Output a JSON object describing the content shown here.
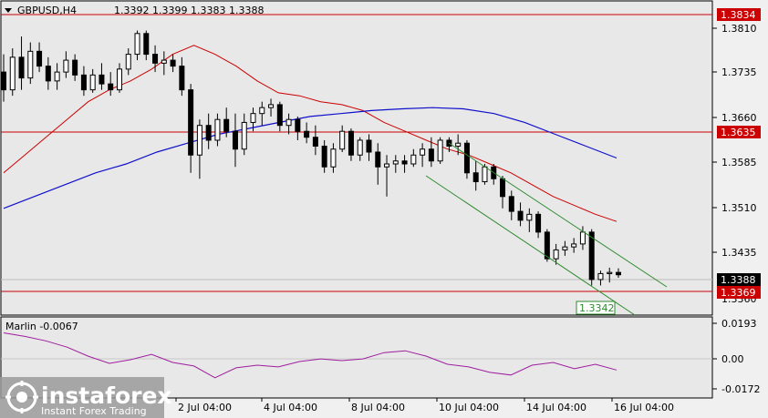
{
  "header": {
    "symbol": "GBPUSD,H4",
    "ohlc": "1.3392 1.3399 1.3383 1.3388"
  },
  "price_axis": {
    "ticks": [
      "1.3810",
      "1.3735",
      "1.3660",
      "1.3585",
      "1.3510",
      "1.3435",
      "1.3360"
    ]
  },
  "level_tags": {
    "top": "1.3834",
    "middle": "1.3635",
    "current": "1.3388",
    "bottom": "1.3369"
  },
  "channel_label": "1.3342",
  "indicator": {
    "name_value": "Marlin -0.0067",
    "ticks": [
      "0.0193",
      "0.00",
      "-0.0172"
    ]
  },
  "time_axis": {
    "labels": [
      "2 Jul 04:00",
      "4 Jul 04:00",
      "8 Jul 04:00",
      "10 Jul 04:00",
      "14 Jul 04:00",
      "16 Jul 04:00"
    ]
  },
  "watermark": {
    "brand": "instaforex",
    "tagline": "Instant Forex Trading"
  },
  "colors": {
    "chart_bg": "#e8e8e8",
    "candle": "#000000",
    "level_line": "#cc0000",
    "ma_fast": "#cc0000",
    "ma_slow": "#1010cc",
    "channel": "#2e8b2e",
    "oscillator": "#9e1e9e",
    "tag_red": "#cc0000",
    "tag_black": "#000000"
  },
  "chart_data": {
    "type": "candlestick",
    "y_range": [
      1.332,
      1.385
    ],
    "levels": [
      1.3834,
      1.3635,
      1.3369
    ],
    "ohlc": [
      [
        1.373,
        1.376,
        1.368,
        1.37
      ],
      [
        1.37,
        1.377,
        1.369,
        1.3755
      ],
      [
        1.3755,
        1.379,
        1.37,
        1.372
      ],
      [
        1.372,
        1.378,
        1.371,
        1.3765
      ],
      [
        1.3765,
        1.378,
        1.373,
        1.374
      ],
      [
        1.374,
        1.3755,
        1.37,
        1.3715
      ],
      [
        1.3715,
        1.3745,
        1.37,
        1.373
      ],
      [
        1.373,
        1.3765,
        1.372,
        1.375
      ],
      [
        1.375,
        1.376,
        1.3715,
        1.3725
      ],
      [
        1.3725,
        1.374,
        1.369,
        1.37
      ],
      [
        1.37,
        1.3735,
        1.3695,
        1.3725
      ],
      [
        1.3725,
        1.3745,
        1.37,
        1.371
      ],
      [
        1.371,
        1.373,
        1.369,
        1.37
      ],
      [
        1.37,
        1.3745,
        1.3695,
        1.3735
      ],
      [
        1.3735,
        1.377,
        1.3725,
        1.376
      ],
      [
        1.376,
        1.38,
        1.375,
        1.3795
      ],
      [
        1.3795,
        1.38,
        1.375,
        1.376
      ],
      [
        1.376,
        1.3775,
        1.373,
        1.3745
      ],
      [
        1.3745,
        1.3765,
        1.3725,
        1.375
      ],
      [
        1.375,
        1.376,
        1.373,
        1.374
      ],
      [
        1.374,
        1.3755,
        1.369,
        1.37
      ],
      [
        1.37,
        1.371,
        1.356,
        1.359
      ],
      [
        1.359,
        1.365,
        1.355,
        1.364
      ],
      [
        1.364,
        1.366,
        1.36,
        1.3615
      ],
      [
        1.3615,
        1.366,
        1.3605,
        1.365
      ],
      [
        1.365,
        1.367,
        1.362,
        1.363
      ],
      [
        1.363,
        1.366,
        1.357,
        1.36
      ],
      [
        1.36,
        1.366,
        1.359,
        1.3645
      ],
      [
        1.3645,
        1.367,
        1.363,
        1.366
      ],
      [
        1.366,
        1.368,
        1.364,
        1.367
      ],
      [
        1.367,
        1.3685,
        1.3655,
        1.3675
      ],
      [
        1.3675,
        1.368,
        1.363,
        1.364
      ],
      [
        1.364,
        1.366,
        1.3625,
        1.365
      ],
      [
        1.365,
        1.3655,
        1.3615,
        1.363
      ],
      [
        1.363,
        1.3645,
        1.361,
        1.362
      ],
      [
        1.362,
        1.364,
        1.359,
        1.3605
      ],
      [
        1.3605,
        1.3615,
        1.356,
        1.357
      ],
      [
        1.357,
        1.361,
        1.356,
        1.36
      ],
      [
        1.36,
        1.364,
        1.3595,
        1.363
      ],
      [
        1.363,
        1.3635,
        1.358,
        1.359
      ],
      [
        1.359,
        1.362,
        1.358,
        1.3615
      ],
      [
        1.3615,
        1.3625,
        1.358,
        1.3595
      ],
      [
        1.3595,
        1.361,
        1.354,
        1.357
      ],
      [
        1.357,
        1.359,
        1.352,
        1.3575
      ],
      [
        1.3575,
        1.359,
        1.356,
        1.358
      ],
      [
        1.358,
        1.359,
        1.356,
        1.3575
      ],
      [
        1.3575,
        1.36,
        1.357,
        1.359
      ],
      [
        1.359,
        1.361,
        1.357,
        1.36
      ],
      [
        1.36,
        1.362,
        1.357,
        1.358
      ],
      [
        1.358,
        1.362,
        1.3575,
        1.3615
      ],
      [
        1.3615,
        1.362,
        1.3595,
        1.3605
      ],
      [
        1.3605,
        1.3625,
        1.359,
        1.361
      ],
      [
        1.361,
        1.3615,
        1.355,
        1.356
      ],
      [
        1.356,
        1.358,
        1.353,
        1.3545
      ],
      [
        1.3545,
        1.3575,
        1.354,
        1.357
      ],
      [
        1.357,
        1.3575,
        1.354,
        1.355
      ],
      [
        1.355,
        1.3555,
        1.35,
        1.352
      ],
      [
        1.352,
        1.353,
        1.348,
        1.3495
      ],
      [
        1.3495,
        1.351,
        1.347,
        1.348
      ],
      [
        1.348,
        1.35,
        1.346,
        1.349
      ],
      [
        1.349,
        1.3495,
        1.345,
        1.346
      ],
      [
        1.346,
        1.3465,
        1.341,
        1.3415
      ],
      [
        1.3415,
        1.344,
        1.3405,
        1.343
      ],
      [
        1.343,
        1.3445,
        1.342,
        1.3435
      ],
      [
        1.3435,
        1.345,
        1.3425,
        1.344
      ],
      [
        1.344,
        1.347,
        1.343,
        1.346
      ],
      [
        1.346,
        1.3465,
        1.337,
        1.338
      ],
      [
        1.338,
        1.3395,
        1.337,
        1.339
      ],
      [
        1.339,
        1.34,
        1.3375,
        1.3392
      ],
      [
        1.3392,
        1.3399,
        1.3383,
        1.3388
      ]
    ],
    "ma_fast": [
      1.356,
      1.359,
      1.362,
      1.365,
      1.368,
      1.37,
      1.3715,
      1.3735,
      1.376,
      1.3775,
      1.376,
      1.374,
      1.3715,
      1.3695,
      1.369,
      1.368,
      1.3675,
      1.3665,
      1.3645,
      1.363,
      1.3615,
      1.36,
      1.359,
      1.3575,
      1.356,
      1.354,
      1.352,
      1.3505,
      1.349,
      1.3478
    ],
    "ma_slow": [
      1.35,
      1.352,
      1.354,
      1.356,
      1.3575,
      1.3595,
      1.361,
      1.3625,
      1.3635,
      1.3645,
      1.3655,
      1.366,
      1.3665,
      1.3668,
      1.367,
      1.3668,
      1.366,
      1.3645,
      1.3625,
      1.3605,
      1.3585
    ],
    "oscillator_range": [
      -0.0172,
      0.0193
    ],
    "oscillator": [
      0.014,
      0.012,
      0.0095,
      0.006,
      0.001,
      -0.003,
      -0.001,
      0.002,
      -0.0025,
      -0.0045,
      -0.011,
      -0.0055,
      -0.004,
      -0.005,
      -0.002,
      -0.0005,
      -0.0015,
      -0.0005,
      0.003,
      0.004,
      0.001,
      -0.0035,
      -0.005,
      -0.008,
      -0.0095,
      -0.004,
      -0.0025,
      -0.006,
      -0.0035,
      -0.0067
    ]
  }
}
